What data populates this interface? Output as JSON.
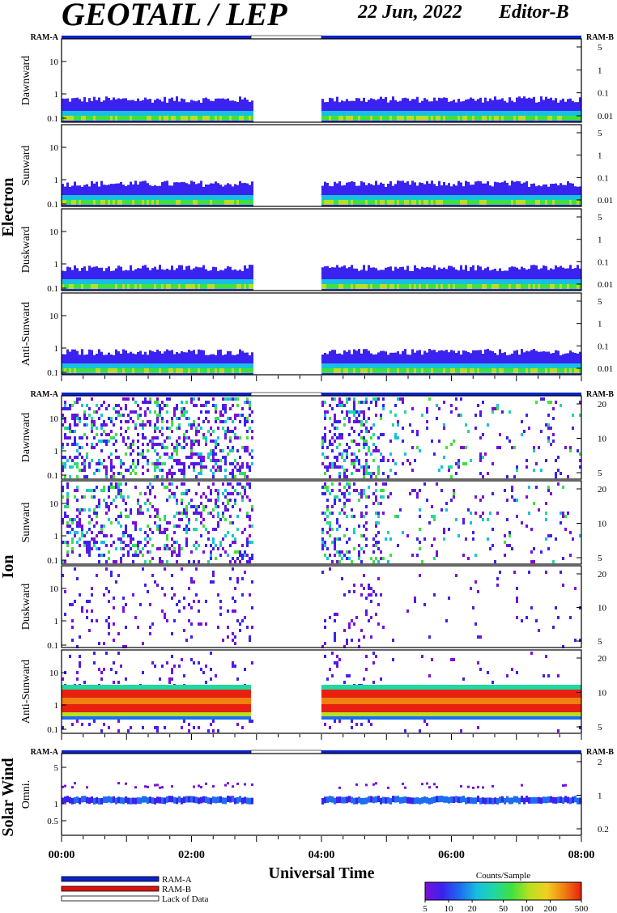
{
  "header": {
    "title": "GEOTAIL / LEP",
    "date": "22 Jun, 2022",
    "editor": "Editor-B"
  },
  "labels": {
    "ram_a": "RAM-A",
    "ram_b": "RAM-B",
    "x_title": "Universal Time",
    "colorbar_title": "Counts/Sample"
  },
  "legend": {
    "items": [
      {
        "label": "RAM-A",
        "color": "#0a22c8"
      },
      {
        "label": "RAM-B",
        "color": "#e01010"
      },
      {
        "label": "Lack of Data",
        "color": "#ffffff"
      }
    ]
  },
  "chart_data": {
    "type": "heatmap",
    "x_axis": {
      "label": "Universal Time",
      "range": [
        "00:00",
        "08:00"
      ],
      "ticks": [
        "00:00",
        "02:00",
        "04:00",
        "06:00",
        "08:00"
      ]
    },
    "data_gap": [
      "02:55",
      "04:00"
    ],
    "colorbar": {
      "label": "Counts/Sample",
      "ticks": [
        "5",
        "10",
        "20",
        "50",
        "100",
        "200",
        "500"
      ]
    },
    "groups": [
      {
        "name": "Electron",
        "panels": [
          {
            "label": "Dawnward",
            "left_ticks": [
              "10",
              "1",
              "0.1"
            ],
            "right_ticks": [
              "5",
              "1",
              "0.1",
              "0.01"
            ]
          },
          {
            "label": "Sunward",
            "left_ticks": [
              "10",
              "1",
              "0.1"
            ],
            "right_ticks": [
              "5",
              "1",
              "0.1",
              "0.01"
            ]
          },
          {
            "label": "Duskward",
            "left_ticks": [
              "10",
              "1",
              "0.1"
            ],
            "right_ticks": [
              "5",
              "1",
              "0.1",
              "0.01"
            ]
          },
          {
            "label": "Anti-Sunward",
            "left_ticks": [
              "10",
              "1",
              "0.1"
            ],
            "right_ticks": [
              "5",
              "1",
              "0.1",
              "0.01"
            ]
          }
        ]
      },
      {
        "name": "Ion",
        "panels": [
          {
            "label": "Dawnward",
            "left_ticks": [
              "10",
              "1",
              "0.1"
            ],
            "right_ticks": [
              "20",
              "10",
              "5"
            ]
          },
          {
            "label": "Sunward",
            "left_ticks": [
              "10",
              "1",
              "0.1"
            ],
            "right_ticks": [
              "20",
              "10",
              "5"
            ]
          },
          {
            "label": "Duskward",
            "left_ticks": [
              "10",
              "1",
              "0.1"
            ],
            "right_ticks": [
              "20",
              "10",
              "5"
            ]
          },
          {
            "label": "Anti-Sunward",
            "left_ticks": [
              "10",
              "1",
              "0.1"
            ],
            "right_ticks": [
              "20",
              "10",
              "5"
            ]
          }
        ]
      },
      {
        "name": "Solar Wind",
        "panels": [
          {
            "label": "Omni.",
            "left_ticks": [
              "5",
              "1",
              "0.5"
            ],
            "right_ticks": [
              "2",
              "1",
              "0.2"
            ]
          }
        ]
      }
    ]
  }
}
